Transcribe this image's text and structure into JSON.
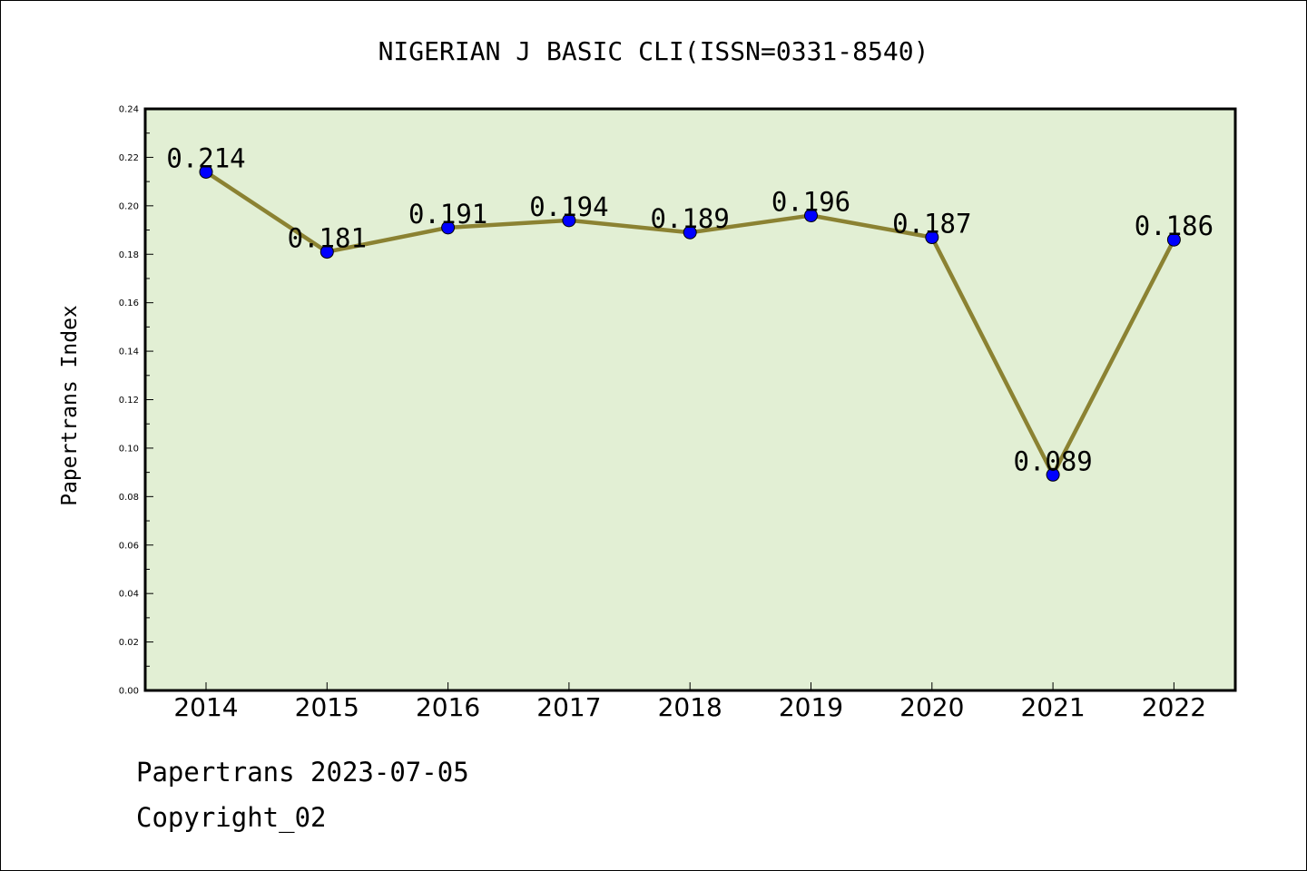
{
  "chart_data": {
    "type": "line",
    "title": "NIGERIAN J BASIC CLI(ISSN=0331-8540)",
    "xlabel": "",
    "ylabel": "Papertrans Index",
    "categories": [
      "2014",
      "2015",
      "2016",
      "2017",
      "2018",
      "2019",
      "2020",
      "2021",
      "2022"
    ],
    "values": [
      0.214,
      0.181,
      0.191,
      0.194,
      0.189,
      0.196,
      0.187,
      0.089,
      0.186
    ],
    "data_labels": [
      "0.214",
      "0.181",
      "0.191",
      "0.194",
      "0.189",
      "0.196",
      "0.187",
      "0.089",
      "0.186"
    ],
    "ylim": [
      0,
      0.24
    ],
    "yticks": [
      "0.00",
      "0.02",
      "0.04",
      "0.06",
      "0.08",
      "0.10",
      "0.12",
      "0.14",
      "0.16",
      "0.18",
      "0.20",
      "0.22",
      "0.24"
    ],
    "grid": false,
    "colors": {
      "plot_background": "#e2efd4",
      "line": "#8b8232",
      "marker": "#0000ff"
    }
  },
  "footer": {
    "date_text": "Papertrans 2023-07-05",
    "copyright_text": "Copyright_02"
  }
}
